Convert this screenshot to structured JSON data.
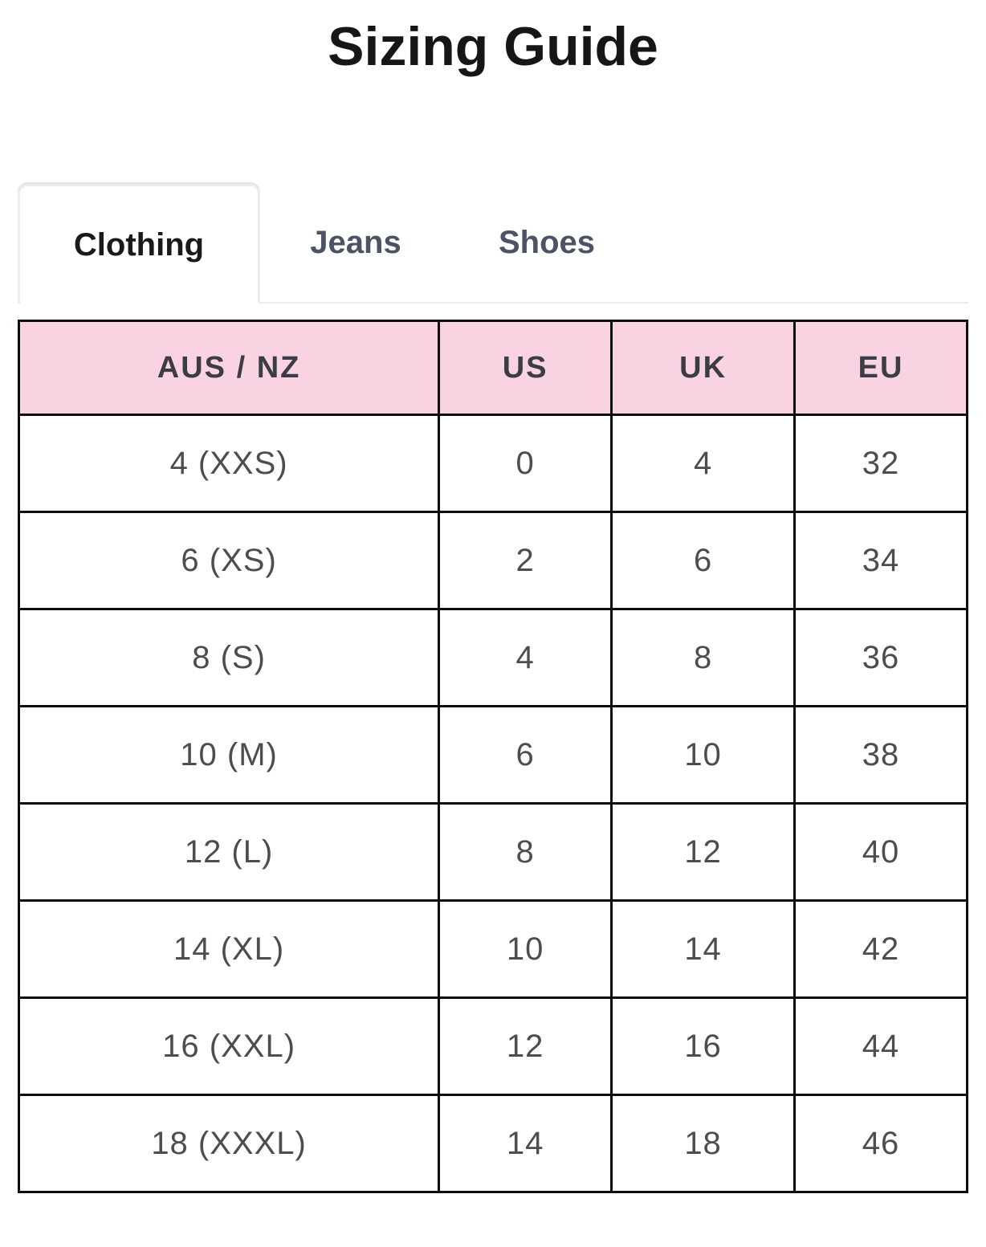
{
  "page": {
    "title": "Sizing Guide"
  },
  "tabs": [
    {
      "label": "Clothing",
      "active": true
    },
    {
      "label": "Jeans",
      "active": false
    },
    {
      "label": "Shoes",
      "active": false
    }
  ],
  "table": {
    "headers": [
      "AUS / NZ",
      "US",
      "UK",
      "EU"
    ],
    "rows": [
      [
        "4 (XXS)",
        "0",
        "4",
        "32"
      ],
      [
        "6 (XS)",
        "2",
        "6",
        "34"
      ],
      [
        "8 (S)",
        "4",
        "8",
        "36"
      ],
      [
        "10 (M)",
        "6",
        "10",
        "38"
      ],
      [
        "12 (L)",
        "8",
        "12",
        "40"
      ],
      [
        "14 (XL)",
        "10",
        "14",
        "42"
      ],
      [
        "16 (XXL)",
        "12",
        "16",
        "44"
      ],
      [
        "18 (XXXL)",
        "14",
        "18",
        "46"
      ]
    ]
  },
  "colors": {
    "header_bg": "#f9d3e1",
    "table_border": "#0d0d0d",
    "tab_active_text": "#1a1a1a",
    "tab_inactive_text": "#4d5364",
    "tab_border": "#ececec",
    "body_text": "#4d4d4d",
    "title_text": "#161616"
  }
}
